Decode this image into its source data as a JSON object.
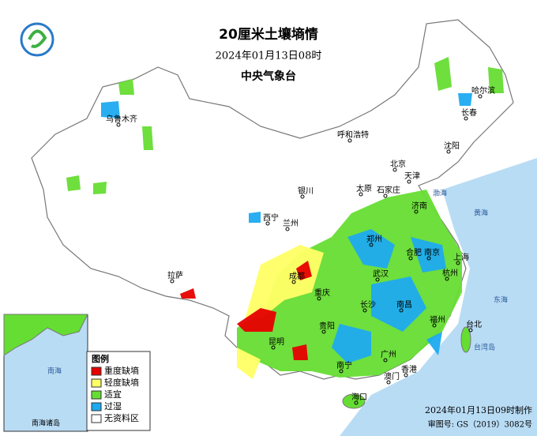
{
  "header": {
    "title": "20厘米土壤墒情",
    "datetime": "2024年01月13日08时",
    "agency": "中央气象台"
  },
  "legend": {
    "title": "图例",
    "items": [
      {
        "label": "重度缺墒",
        "color": "#e60000"
      },
      {
        "label": "轻度缺墒",
        "color": "#ffff66"
      },
      {
        "label": "适宜",
        "color": "#66dd33"
      },
      {
        "label": "过湿",
        "color": "#1eaaf0"
      },
      {
        "label": "无资料区",
        "color": "#ffffff"
      }
    ]
  },
  "cities": [
    "乌鲁木齐",
    "呼和浩特",
    "哈尔滨",
    "长春",
    "沈阳",
    "北京",
    "天津",
    "石家庄",
    "太原",
    "银川",
    "济南",
    "西宁",
    "兰州",
    "郑州",
    "合肥",
    "南京",
    "上海",
    "杭州",
    "武汉",
    "成都",
    "拉萨",
    "重庆",
    "长沙",
    "南昌",
    "福州",
    "台北",
    "贵阳",
    "昆明",
    "南宁",
    "广州",
    "香港",
    "澳门",
    "海口"
  ],
  "seas": [
    "渤海",
    "黄海",
    "东海",
    "台湾岛",
    "南海"
  ],
  "inset": {
    "label": "南海诸岛"
  },
  "footer": {
    "made": "2024年01月13日09时制作",
    "review": "审图号: GS（2019）3082号"
  }
}
